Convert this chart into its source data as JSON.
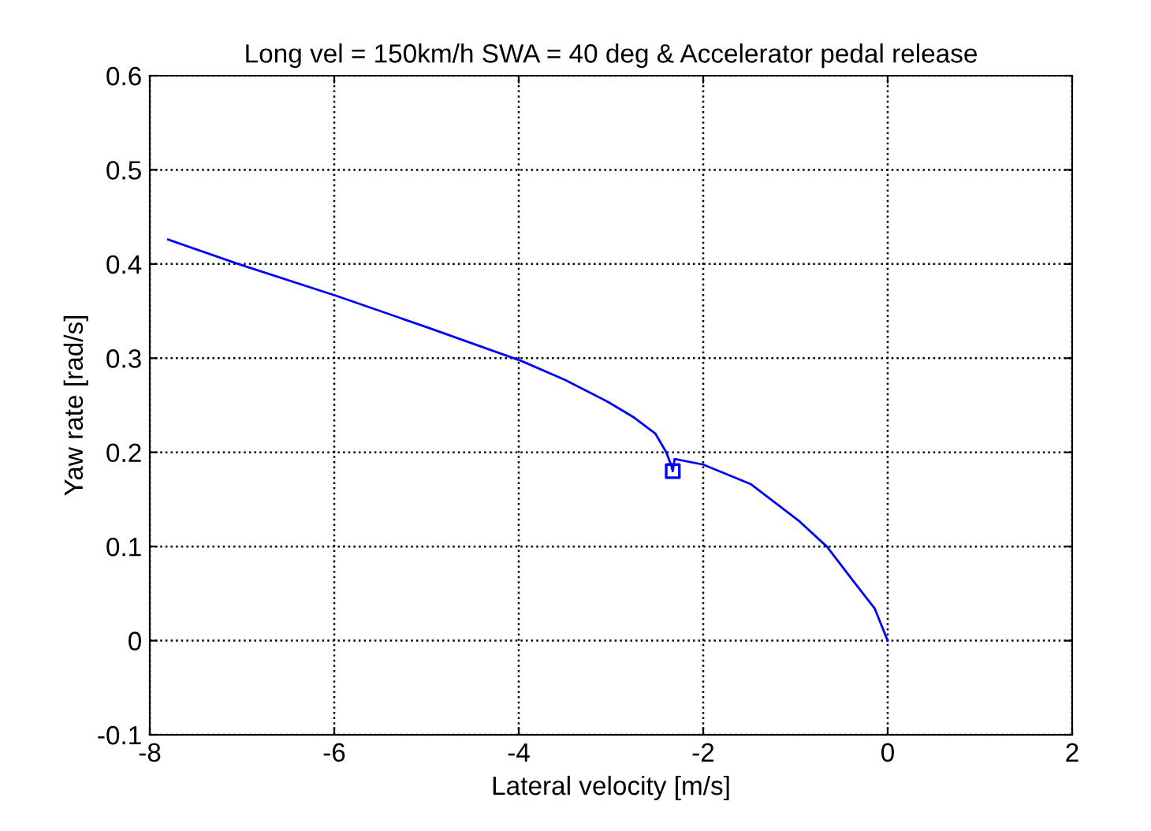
{
  "chart_data": {
    "type": "line",
    "title": "Long vel = 150km/h SWA = 40 deg & Accelerator pedal release",
    "xlabel": "Lateral velocity [m/s]",
    "ylabel": "Yaw rate [rad/s]",
    "xlim": [
      -8,
      2
    ],
    "xticks": [
      -8,
      -6,
      -4,
      -2,
      0,
      2
    ],
    "ylim": [
      -0.1,
      0.6
    ],
    "yticks": [
      -0.1,
      0,
      0.1,
      0.2,
      0.3,
      0.4,
      0.5,
      0.6
    ],
    "grid": true,
    "line_style": "solid",
    "series": [
      {
        "color": "#0000ff",
        "marker": "none",
        "x": [
          -7.8,
          -7.04,
          -5.97,
          -5.0,
          -3.97,
          -3.5,
          -3.04,
          -2.75,
          -2.52,
          -2.4,
          -2.35,
          -2.33,
          -2.31,
          -2.0,
          -1.48,
          -0.96,
          -0.66,
          -0.37,
          -0.14,
          0
        ],
        "values": [
          0.426,
          0.4,
          0.366,
          0.333,
          0.297,
          0.277,
          0.254,
          0.237,
          0.22,
          0.2,
          0.187,
          0.18,
          0.193,
          0.187,
          0.166,
          0.127,
          0.1,
          0.063,
          0.034,
          0
        ]
      },
      {
        "type": "scatter",
        "color": "#0000ff",
        "marker": "square",
        "x": [
          -2.33
        ],
        "values": [
          0.18
        ]
      }
    ]
  }
}
